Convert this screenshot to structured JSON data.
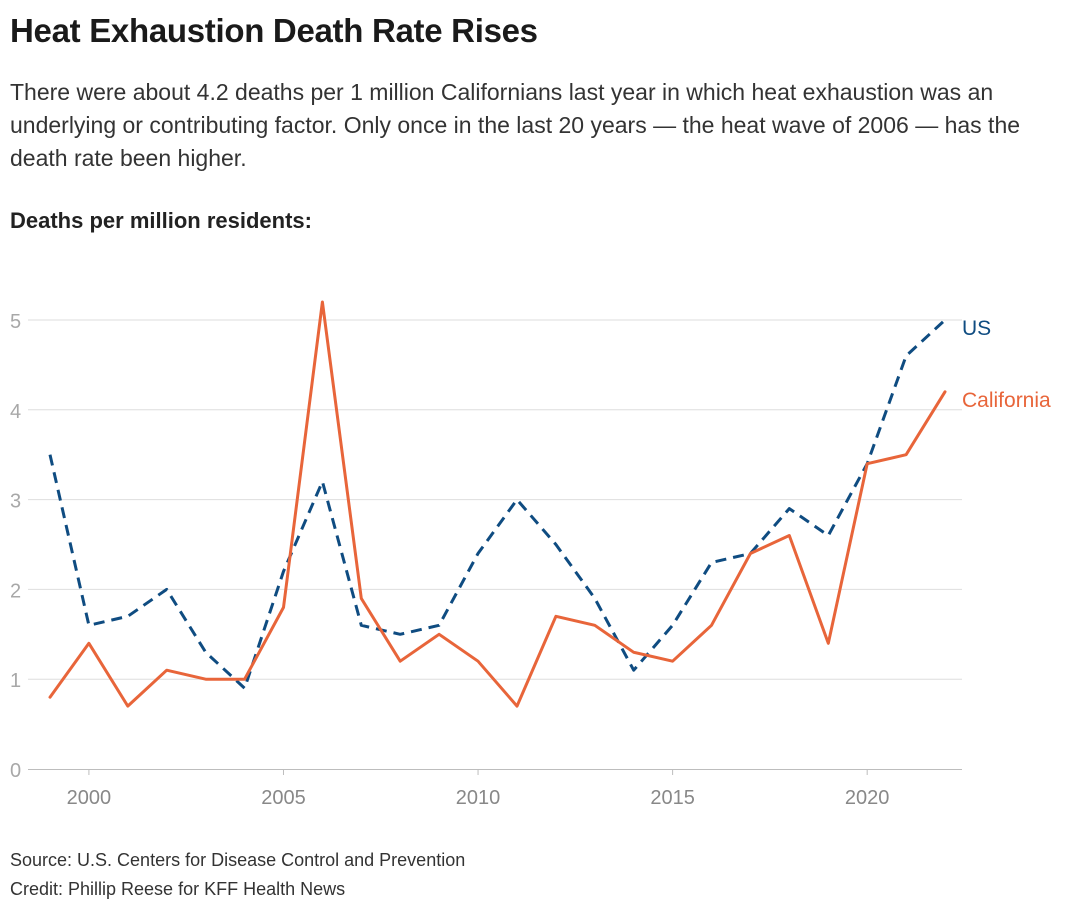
{
  "title": "Heat Exhaustion Death Rate Rises",
  "subtitle": "There were about 4.2 deaths per 1 million Californians last year in which heat exhaustion was an underlying or contributing factor. Only once in the last 20 years — the heat wave of 2006 — has the death rate been higher.",
  "ylabel": "Deaths per million residents:",
  "source": "Source: U.S. Centers for Disease Control and Prevention",
  "credit": "Credit: Phillip Reese for KFF Health News",
  "chart_data": {
    "type": "line",
    "x": [
      1999,
      2000,
      2001,
      2002,
      2003,
      2004,
      2005,
      2006,
      2007,
      2008,
      2009,
      2010,
      2011,
      2012,
      2013,
      2014,
      2015,
      2016,
      2017,
      2018,
      2019,
      2020,
      2021,
      2022
    ],
    "series": [
      {
        "name": "US",
        "color": "#0f4c81",
        "dash": true,
        "values": [
          3.5,
          1.6,
          1.7,
          2.0,
          1.3,
          0.9,
          2.2,
          3.2,
          1.6,
          1.5,
          1.6,
          2.4,
          3.0,
          2.5,
          1.9,
          1.1,
          1.6,
          2.3,
          2.4,
          2.9,
          2.6,
          3.4,
          4.6,
          5.0
        ]
      },
      {
        "name": "California",
        "color": "#e8653a",
        "dash": false,
        "values": [
          0.8,
          1.4,
          0.7,
          1.1,
          1.0,
          1.0,
          1.8,
          5.2,
          1.9,
          1.2,
          1.5,
          1.2,
          0.7,
          1.7,
          1.6,
          1.3,
          1.2,
          1.6,
          2.4,
          2.6,
          1.4,
          3.4,
          3.5,
          4.2
        ]
      }
    ],
    "xticks": [
      2000,
      2005,
      2010,
      2015,
      2020
    ],
    "yticks": [
      0,
      1,
      2,
      3,
      4,
      5
    ],
    "xlim": [
      1999,
      2022
    ],
    "ylim": [
      0,
      5
    ],
    "grid": true,
    "legend": "inline-right"
  }
}
